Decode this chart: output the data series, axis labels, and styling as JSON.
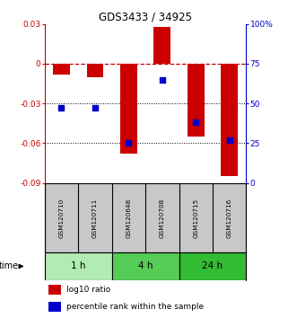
{
  "title": "GDS3433 / 34925",
  "samples": [
    "GSM120710",
    "GSM120711",
    "GSM120648",
    "GSM120708",
    "GSM120715",
    "GSM120716"
  ],
  "log10_ratio": [
    -0.008,
    -0.01,
    -0.068,
    0.028,
    -0.055,
    -0.085
  ],
  "percentile_rank": [
    47,
    47,
    25,
    65,
    38,
    27
  ],
  "ylim_left": [
    -0.09,
    0.03
  ],
  "ylim_right": [
    0,
    100
  ],
  "yticks_left": [
    0.03,
    0.0,
    -0.03,
    -0.06,
    -0.09
  ],
  "yticks_right": [
    100,
    75,
    50,
    25,
    0
  ],
  "ytick_labels_left": [
    "0.03",
    "0",
    "-0.03",
    "-0.06",
    "-0.09"
  ],
  "ytick_labels_right": [
    "100%",
    "75",
    "50",
    "25",
    "0"
  ],
  "time_groups": [
    {
      "label": "1 h",
      "cols": [
        0,
        1
      ],
      "color": "#b3ecb3"
    },
    {
      "label": "4 h",
      "cols": [
        2,
        3
      ],
      "color": "#55cc55"
    },
    {
      "label": "24 h",
      "cols": [
        4,
        5
      ],
      "color": "#33bb33"
    }
  ],
  "bar_color": "#cc0000",
  "dot_color": "#0000cc",
  "bar_width": 0.5,
  "dot_size": 22,
  "background_color": "#ffffff",
  "plot_bg_color": "#ffffff",
  "grid_color": "#000000",
  "dashed_line_color": "#cc0000",
  "title_color": "#000000",
  "left_axis_color": "#cc0000",
  "right_axis_color": "#0000cc",
  "label_bg_color": "#c8c8c8"
}
